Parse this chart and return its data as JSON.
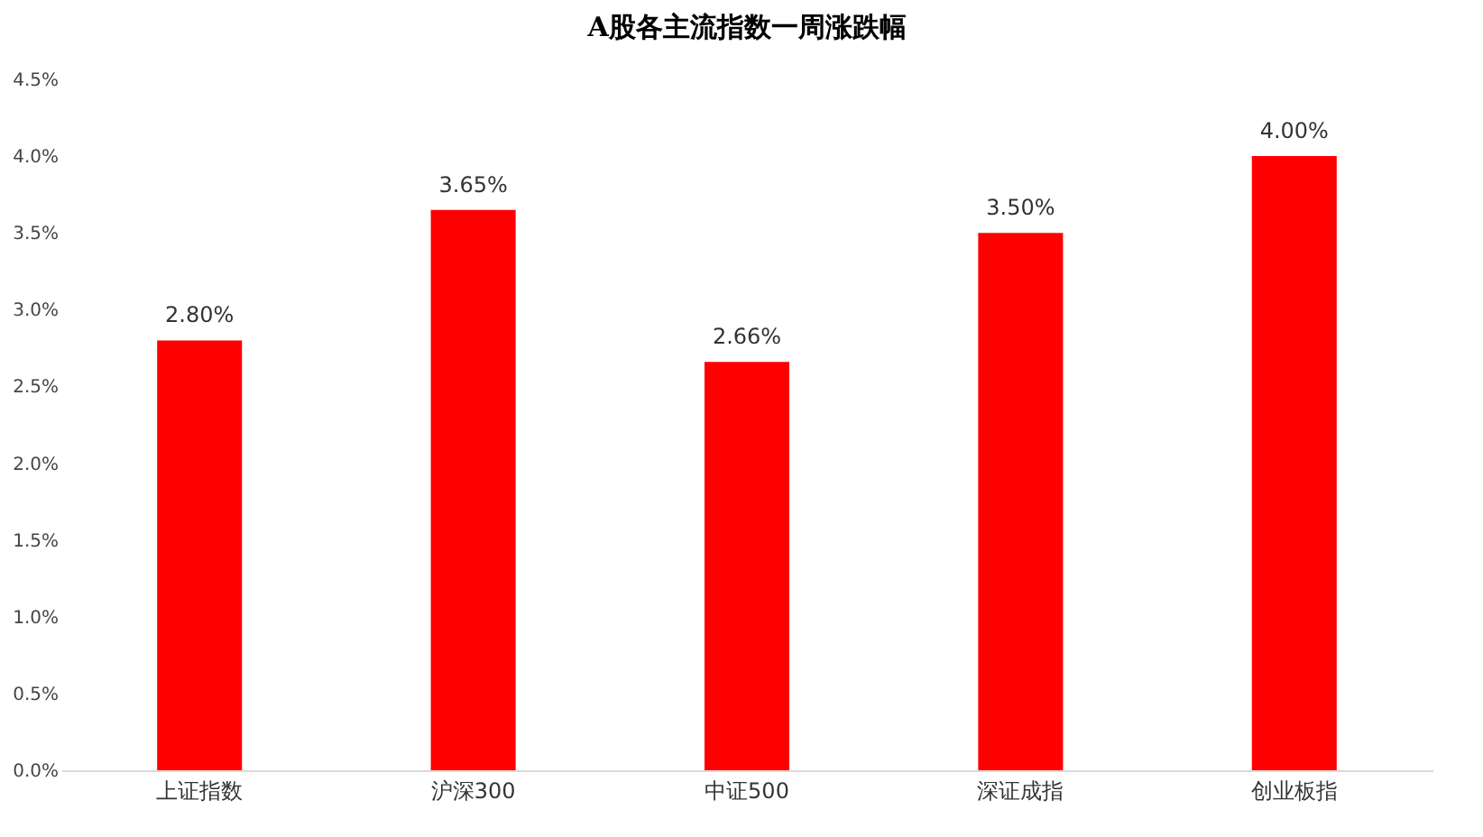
{
  "chart_data": {
    "type": "bar",
    "title": "A股各主流指数一周涨跌幅",
    "categories": [
      "上证指数",
      "沪深300",
      "中证500",
      "深证成指",
      "创业板指"
    ],
    "values": [
      2.8,
      3.65,
      2.66,
      3.5,
      4.0
    ],
    "value_labels": [
      "2.80%",
      "3.65%",
      "2.66%",
      "3.50%",
      "4.00%"
    ],
    "color": "#ff0000",
    "ylim": [
      0,
      4.5
    ],
    "yticks": [
      {
        "value": 0,
        "label": "0.0%"
      },
      {
        "value": 0.5,
        "label": "0.5%"
      },
      {
        "value": 1,
        "label": "1.0%"
      },
      {
        "value": 1.5,
        "label": "1.5%"
      },
      {
        "value": 2,
        "label": "2.0%"
      },
      {
        "value": 2.5,
        "label": "2.5%"
      },
      {
        "value": 3,
        "label": "3.0%"
      },
      {
        "value": 3.5,
        "label": "3.5%"
      },
      {
        "value": 4,
        "label": "4.0%"
      },
      {
        "value": 4.5,
        "label": "4.5%"
      }
    ],
    "grid": false
  }
}
